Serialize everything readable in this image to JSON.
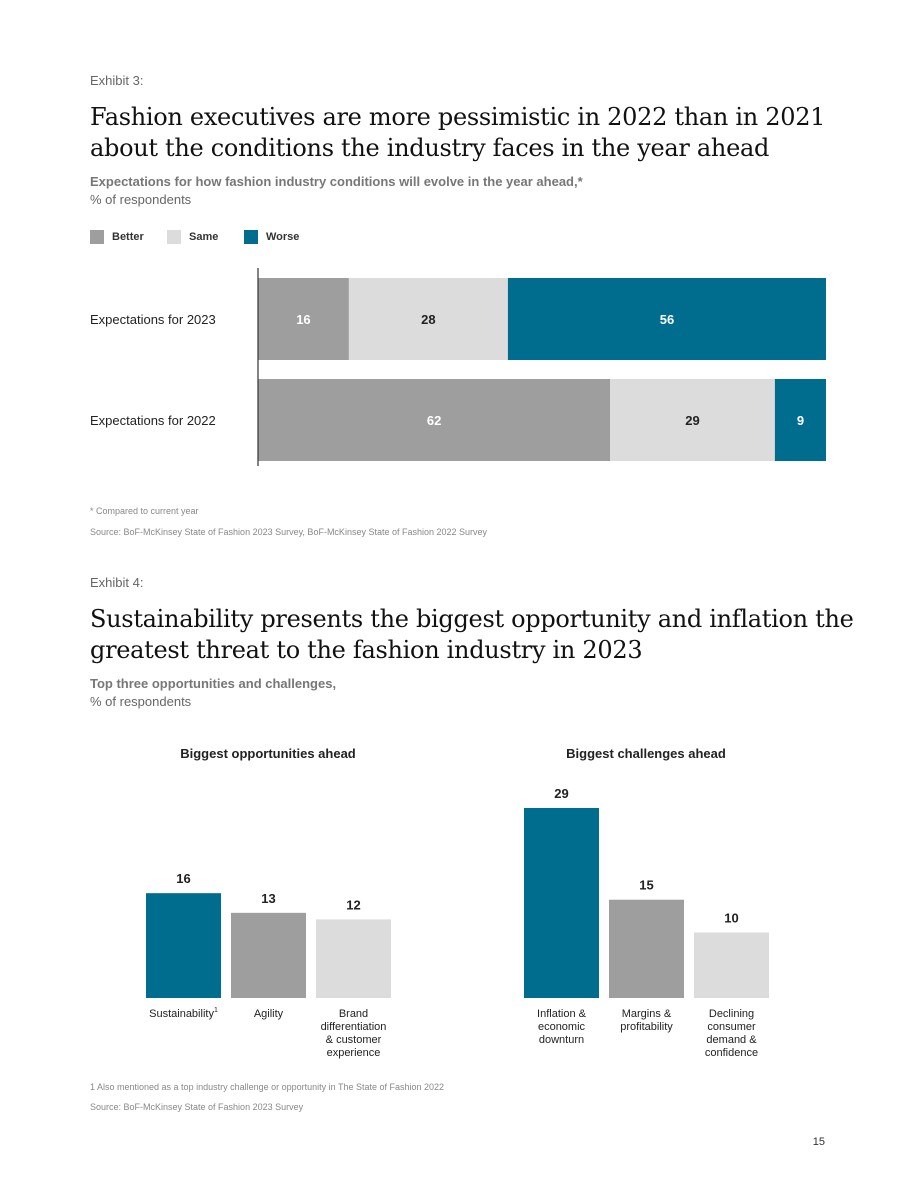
{
  "colors": {
    "better": "#9e9e9e",
    "same": "#dcdcdc",
    "worse": "#006c8e"
  },
  "exhibit3": {
    "label": "Exhibit 3:",
    "title_line1": "Fashion executives are more pessimistic in 2022 than in 2021",
    "title_line2": "about the conditions the industry faces in the year ahead",
    "subtitle_line1": "Expectations for how fashion industry conditions will evolve in the year ahead,*",
    "subtitle_line2": "% of respondents",
    "footnote": "* Compared to current year",
    "source": "Source: BoF-McKinsey State of Fashion 2023 Survey, BoF-McKinsey State of Fashion 2022 Survey"
  },
  "exhibit4": {
    "label": "Exhibit 4:",
    "title_line1": "Sustainability presents the biggest opportunity and inflation the",
    "title_line2": "greatest threat to the fashion industry in 2023",
    "subtitle_line1": "Top three opportunities and challenges,",
    "subtitle_line2": "% of respondents",
    "footnote": "1 Also mentioned as a top industry challenge or opportunity in The State of Fashion 2022",
    "source": "Source: BoF-McKinsey State of Fashion 2023 Survey"
  },
  "page_number": "15",
  "chart_data": [
    {
      "type": "bar",
      "orientation": "horizontal",
      "stacked": true,
      "categories": [
        "Expectations for 2023",
        "Expectations for 2022"
      ],
      "legend": [
        "Better",
        "Same",
        "Worse"
      ],
      "legend_position": "top-left",
      "series": [
        {
          "name": "Better",
          "values": [
            16,
            62
          ]
        },
        {
          "name": "Same",
          "values": [
            28,
            29
          ]
        },
        {
          "name": "Worse",
          "values": [
            56,
            9
          ]
        }
      ]
    },
    {
      "type": "bar",
      "title": "Biggest opportunities ahead",
      "categories": [
        "Sustainability",
        "Agility",
        "Brand differentiation & customer experience"
      ],
      "category_lines": [
        [
          "Sustainability"
        ],
        [
          "Agility"
        ],
        [
          "Brand",
          "differentiation",
          "& customer",
          "experience"
        ]
      ],
      "category_superscripts": [
        "1",
        "",
        ""
      ],
      "values": [
        16,
        13,
        12
      ],
      "value_labels": [
        "16",
        "13",
        "12"
      ],
      "ylim": [
        0,
        29
      ]
    },
    {
      "type": "bar",
      "title": "Biggest challenges ahead",
      "categories": [
        "Inflation & economic downturn",
        "Margins & profitability",
        "Declining consumer demand & confidence"
      ],
      "category_lines": [
        [
          "Inflation &",
          "economic",
          "downturn"
        ],
        [
          "Margins &",
          "profitability"
        ],
        [
          "Declining",
          "consumer",
          "demand &",
          "confidence"
        ]
      ],
      "category_superscripts": [
        "",
        "",
        ""
      ],
      "values": [
        29,
        15,
        10
      ],
      "value_labels": [
        "29",
        "15",
        "10"
      ],
      "ylim": [
        0,
        29
      ]
    }
  ]
}
